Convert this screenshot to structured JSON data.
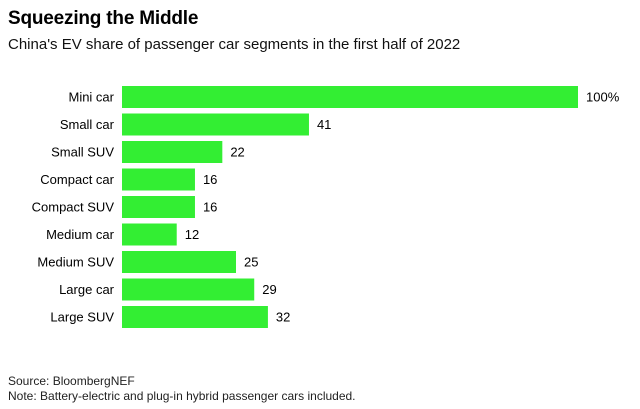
{
  "title": "Squeezing the Middle",
  "subtitle": "China's EV share of passenger car segments in the first half of 2022",
  "chart_data": {
    "type": "bar",
    "orientation": "horizontal",
    "categories": [
      "Mini car",
      "Small car",
      "Small SUV",
      "Compact car",
      "Compact SUV",
      "Medium car",
      "Medium SUV",
      "Large car",
      "Large SUV"
    ],
    "values": [
      100,
      41,
      22,
      16,
      16,
      12,
      25,
      29,
      32
    ],
    "value_labels": [
      "100%",
      "41",
      "22",
      "16",
      "16",
      "12",
      "25",
      "29",
      "32"
    ],
    "xlim": [
      0,
      100
    ],
    "unit": "%",
    "bar_color": "#33ee33",
    "xlabel": "",
    "ylabel": "",
    "grid": false,
    "legend": "none"
  },
  "footer": {
    "source": "Source: BloombergNEF",
    "note": "Note: Battery-electric and plug-in hybrid passenger cars included."
  }
}
